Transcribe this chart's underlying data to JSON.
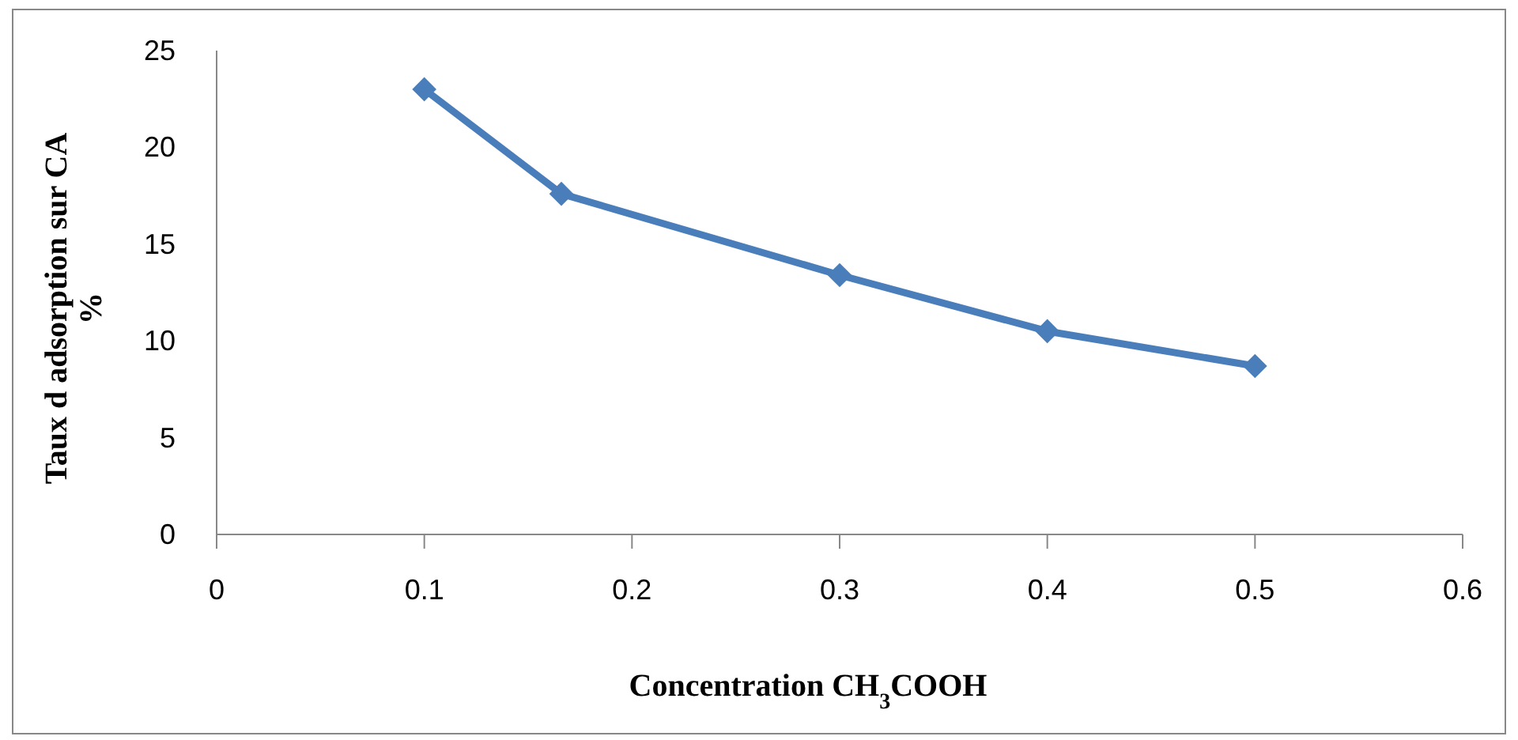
{
  "chart_data": {
    "type": "line",
    "xlabel": "Concentration CH$_{3}$COOH",
    "ylabel": "Taux d adsorption sur CA\n%",
    "x": [
      0.1,
      0.166,
      0.3,
      0.4,
      0.5
    ],
    "series": [
      {
        "color": "#4a7ebb",
        "values": [
          23,
          17.6,
          13.4,
          10.5,
          8.7
        ]
      }
    ],
    "xlim": [
      0,
      0.6
    ],
    "xticks": [
      0,
      0.1,
      0.2,
      0.3,
      0.4,
      0.5,
      0.6
    ],
    "ylim": [
      0,
      25
    ],
    "yticks": [
      0,
      5,
      10,
      15,
      20,
      25
    ],
    "grid": false,
    "marker": "diamond",
    "line_style": "solid"
  }
}
